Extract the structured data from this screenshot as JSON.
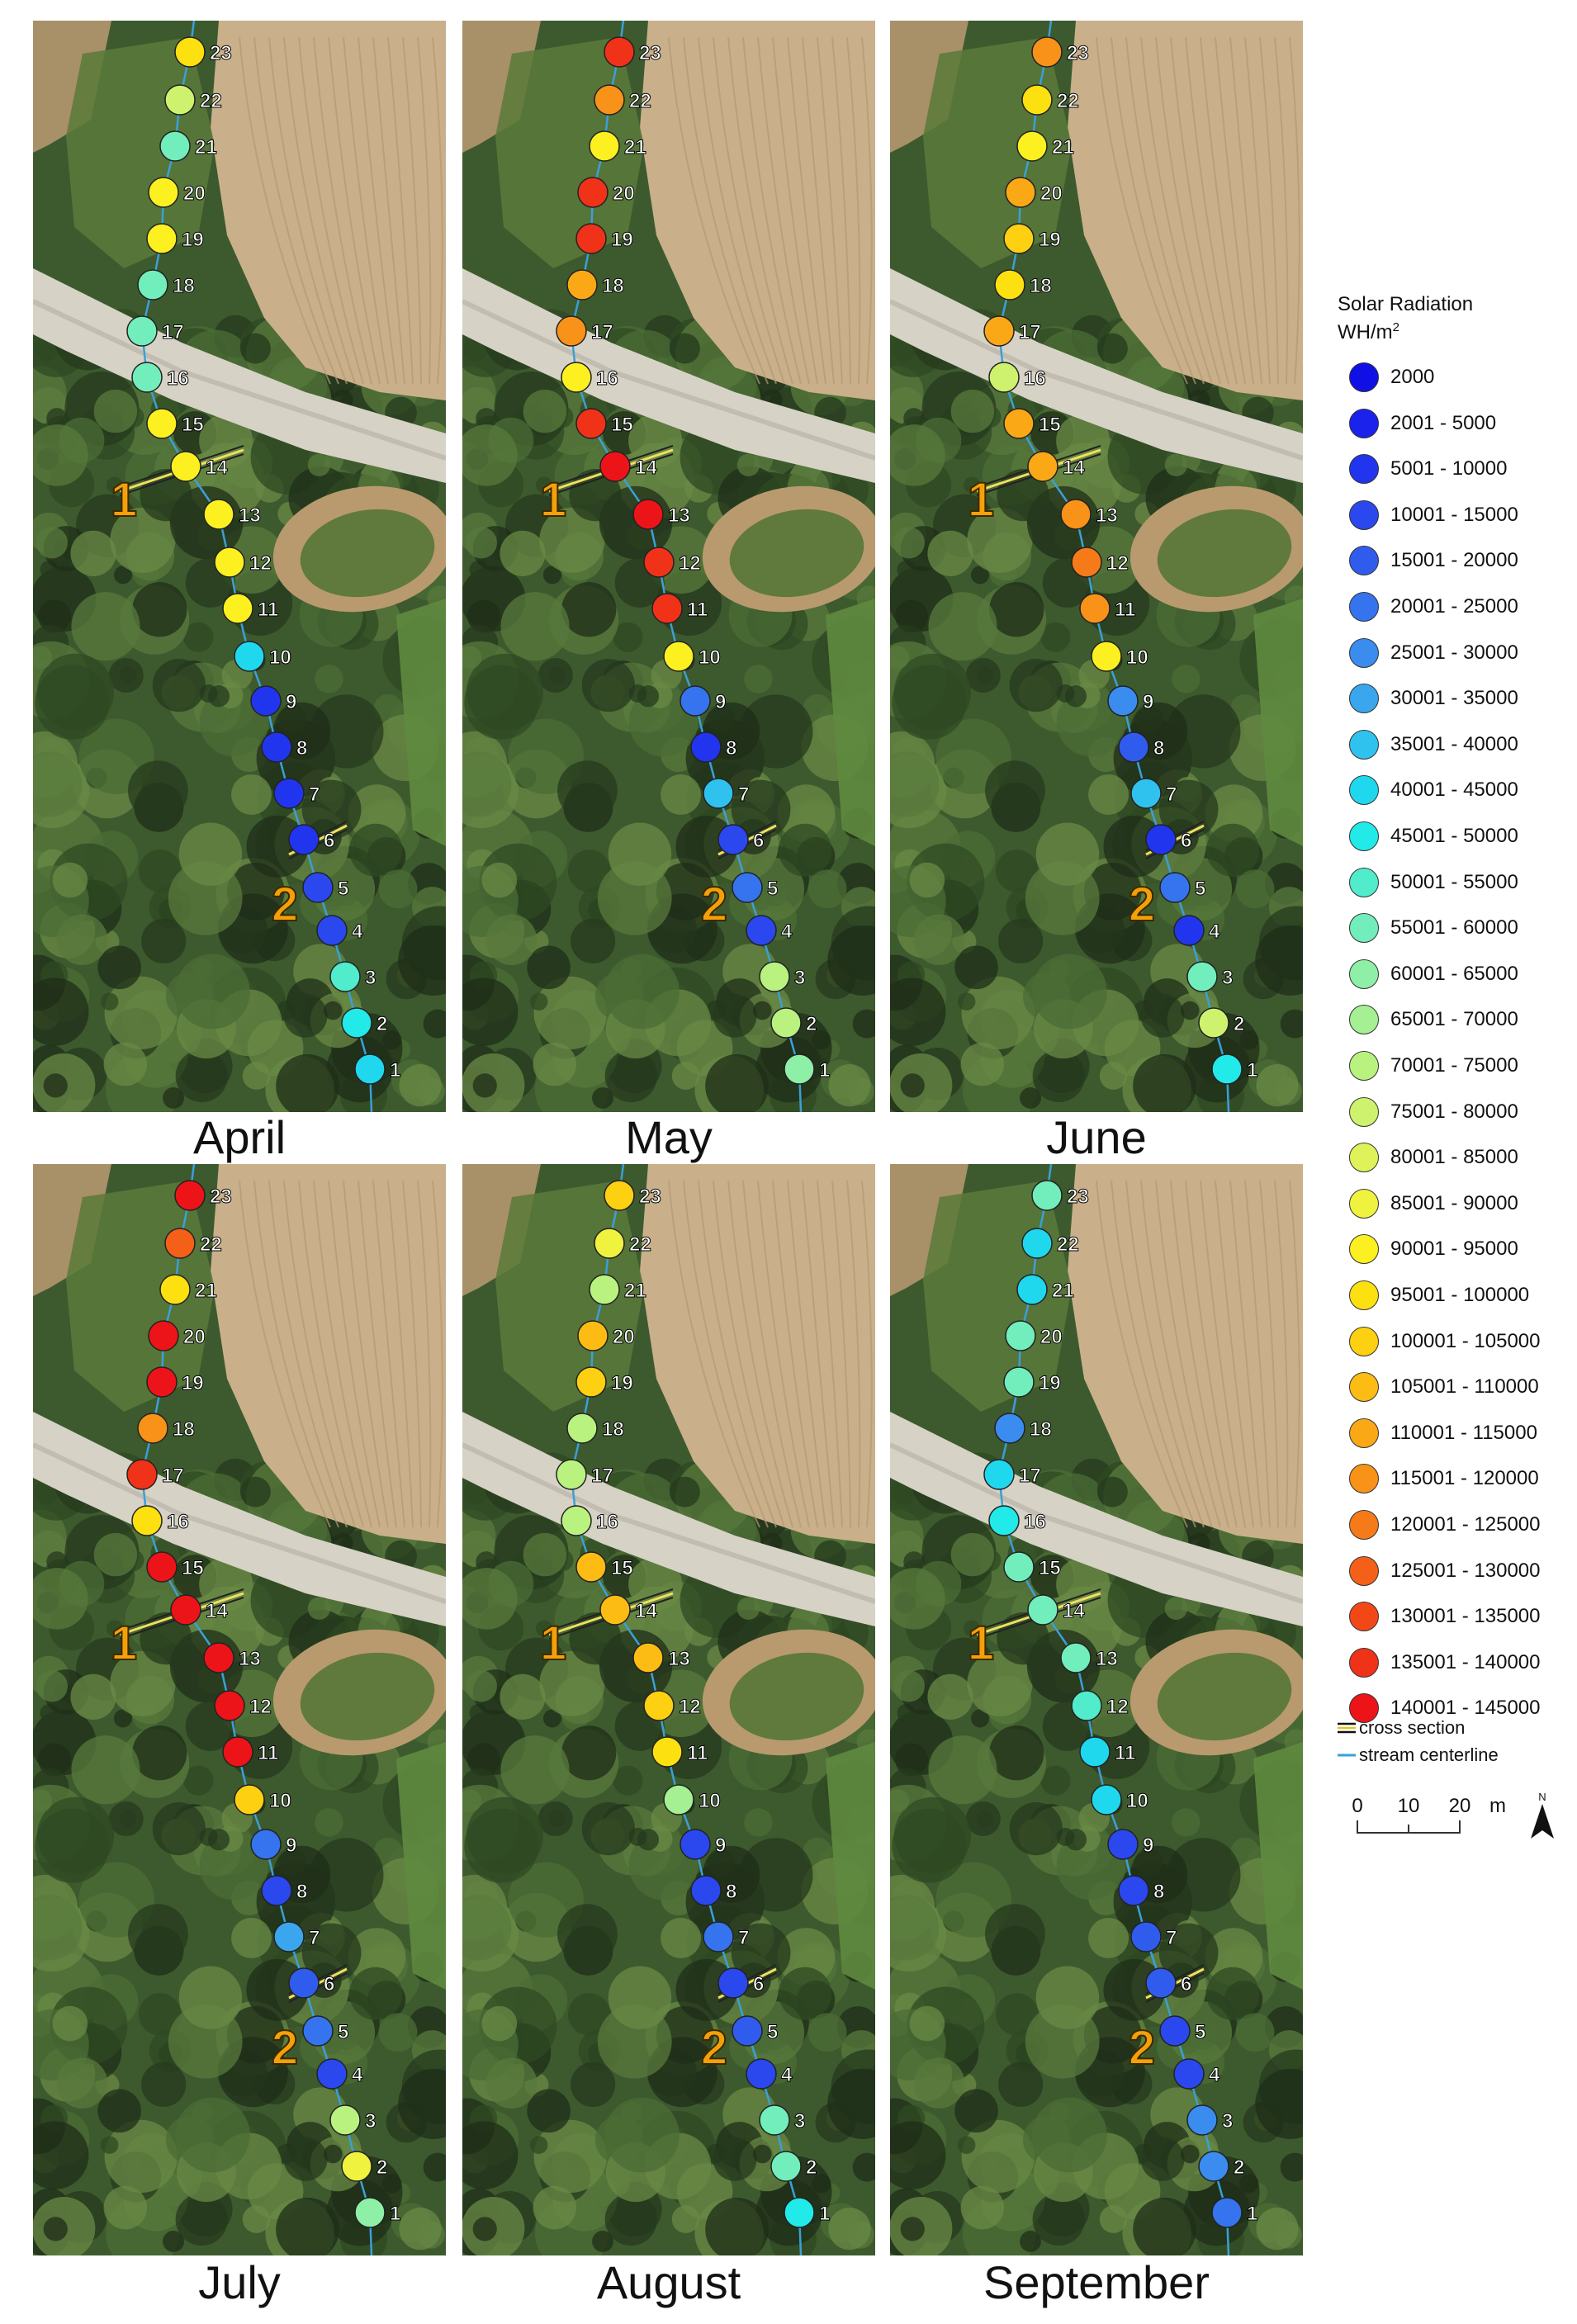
{
  "legend": {
    "title_line1": "Solar Radiation",
    "title_line2_base": "WH/m",
    "title_line2_sup": "2",
    "classes": [
      {
        "label": "2000",
        "color": "#1010e6"
      },
      {
        "label": "2001 - 5000",
        "color": "#1a22ec"
      },
      {
        "label": "5001 - 10000",
        "color": "#2235ee"
      },
      {
        "label": "10001 - 15000",
        "color": "#2a48ee"
      },
      {
        "label": "15001 - 20000",
        "color": "#305cee"
      },
      {
        "label": "20001 - 25000",
        "color": "#3574ee"
      },
      {
        "label": "25001 - 30000",
        "color": "#3a8cee"
      },
      {
        "label": "30001 - 35000",
        "color": "#3aa6ee"
      },
      {
        "label": "35001 - 40000",
        "color": "#30c2ee"
      },
      {
        "label": "40001 - 45000",
        "color": "#20d8ee"
      },
      {
        "label": "45001 - 50000",
        "color": "#22eae8"
      },
      {
        "label": "50001 - 55000",
        "color": "#50eccc"
      },
      {
        "label": "55001 - 60000",
        "color": "#72eebc"
      },
      {
        "label": "60001 - 65000",
        "color": "#8ef0a6"
      },
      {
        "label": "65001 - 70000",
        "color": "#a4f092"
      },
      {
        "label": "70001 - 75000",
        "color": "#baf280"
      },
      {
        "label": "75001 - 80000",
        "color": "#cef26e"
      },
      {
        "label": "80001 - 85000",
        "color": "#e0f25a"
      },
      {
        "label": "85001 - 90000",
        "color": "#f0f240"
      },
      {
        "label": "90001 - 95000",
        "color": "#fcf020"
      },
      {
        "label": "95001 - 100000",
        "color": "#fde010"
      },
      {
        "label": "100001 - 105000",
        "color": "#fdd012"
      },
      {
        "label": "105001 - 110000",
        "color": "#fcbc14"
      },
      {
        "label": "110001 - 115000",
        "color": "#fba816"
      },
      {
        "label": "115001 - 120000",
        "color": "#f99218"
      },
      {
        "label": "120001 - 125000",
        "color": "#f77a18"
      },
      {
        "label": "125001 - 130000",
        "color": "#f56018"
      },
      {
        "label": "130001 - 135000",
        "color": "#f24818"
      },
      {
        "label": "135001 - 140000",
        "color": "#f03218"
      },
      {
        "label": "140001 - 145000",
        "color": "#ec1418"
      }
    ],
    "cross_section_label": "cross section",
    "stream_label": "stream centerline"
  },
  "scale_bar": {
    "ticks": [
      "0",
      "10",
      "20"
    ],
    "unit": "m",
    "north_label": "N"
  },
  "cross_sections": [
    "1",
    "2"
  ],
  "points": [
    "1",
    "2",
    "3",
    "4",
    "5",
    "6",
    "7",
    "8",
    "9",
    "10",
    "11",
    "12",
    "13",
    "14",
    "15",
    "16",
    "17",
    "18",
    "19",
    "20",
    "21",
    "22",
    "23"
  ],
  "panels": [
    {
      "month": "April",
      "point_classes": [
        9,
        10,
        11,
        3,
        3,
        2,
        2,
        2,
        2,
        9,
        19,
        19,
        19,
        19,
        19,
        12,
        12,
        12,
        19,
        19,
        12,
        16,
        20
      ]
    },
    {
      "month": "May",
      "point_classes": [
        13,
        15,
        15,
        3,
        5,
        3,
        8,
        2,
        5,
        19,
        28,
        28,
        29,
        29,
        28,
        19,
        24,
        23,
        28,
        28,
        19,
        24,
        28
      ]
    },
    {
      "month": "June",
      "point_classes": [
        10,
        16,
        12,
        2,
        5,
        2,
        8,
        4,
        6,
        19,
        24,
        25,
        24,
        23,
        23,
        16,
        23,
        20,
        21,
        23,
        19,
        20,
        24
      ]
    },
    {
      "month": "July",
      "point_classes": [
        13,
        18,
        15,
        3,
        5,
        4,
        7,
        3,
        5,
        21,
        29,
        29,
        29,
        29,
        29,
        20,
        28,
        24,
        29,
        29,
        20,
        26,
        29
      ]
    },
    {
      "month": "August",
      "point_classes": [
        10,
        12,
        12,
        3,
        4,
        3,
        5,
        3,
        3,
        14,
        20,
        21,
        22,
        22,
        22,
        15,
        15,
        15,
        21,
        22,
        15,
        18,
        21
      ]
    },
    {
      "month": "September",
      "point_classes": [
        5,
        6,
        6,
        3,
        3,
        4,
        4,
        3,
        3,
        9,
        9,
        11,
        12,
        12,
        12,
        10,
        9,
        6,
        12,
        12,
        9,
        9,
        12
      ]
    }
  ]
}
